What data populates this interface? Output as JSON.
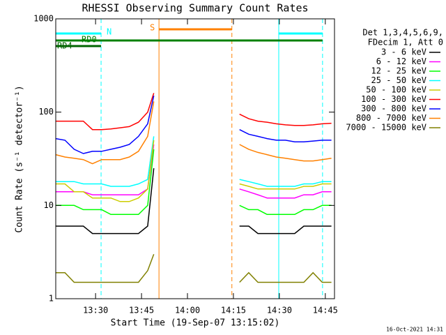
{
  "chart_data": {
    "type": "line",
    "title": "RHESSI Observing Summary Count Rates",
    "xlabel": "Start Time (19-Sep-07 13:15:02)",
    "ylabel": "Count Rate (s⁻¹ detector⁻¹)",
    "log_y": true,
    "xlim": [
      17,
      108
    ],
    "ylim": [
      1,
      1000
    ],
    "xticks": [
      {
        "value": 30,
        "label": "13:30"
      },
      {
        "value": 45,
        "label": "13:45"
      },
      {
        "value": 60,
        "label": "14:00"
      },
      {
        "value": 75,
        "label": "14:15"
      },
      {
        "value": 90,
        "label": "14:30"
      },
      {
        "value": 105,
        "label": "14:45"
      }
    ],
    "yticks": [
      1,
      10,
      100,
      1000
    ],
    "legend_header": [
      "Det 1,3,4,5,6,9,",
      "FDecim 1, Att 0"
    ],
    "timestamp": "16-Oct-2021 14:31",
    "x": [
      17,
      20,
      23,
      26,
      29,
      32,
      35,
      38,
      41,
      44,
      47,
      49,
      62,
      77,
      80,
      83,
      86,
      89,
      92,
      95,
      98,
      101,
      104,
      107
    ],
    "series": [
      {
        "name": "3 - 6 keV",
        "color": "#000000",
        "values": [
          6,
          6,
          6,
          6,
          5,
          5,
          5,
          5,
          5,
          5,
          6,
          25,
          null,
          6,
          6,
          5,
          5,
          5,
          5,
          5,
          6,
          6,
          6,
          6
        ]
      },
      {
        "name": "6 - 12 keV",
        "color": "#ff00ff",
        "values": [
          14,
          14,
          14,
          14,
          13,
          13,
          13,
          13,
          13,
          13,
          15,
          45,
          null,
          15,
          14,
          13,
          12,
          12,
          12,
          12,
          13,
          13,
          14,
          14
        ]
      },
      {
        "name": "12 - 25 keV",
        "color": "#00ff00",
        "values": [
          10,
          10,
          10,
          9,
          9,
          9,
          8,
          8,
          8,
          8,
          10,
          40,
          null,
          10,
          9,
          9,
          8,
          8,
          8,
          8,
          9,
          9,
          10,
          10
        ]
      },
      {
        "name": "25 - 50 keV",
        "color": "#00ffff",
        "values": [
          18,
          18,
          18,
          17,
          17,
          17,
          16,
          16,
          16,
          17,
          19,
          55,
          null,
          19,
          18,
          17,
          16,
          16,
          16,
          16,
          17,
          17,
          18,
          18
        ]
      },
      {
        "name": "50 - 100 keV",
        "color": "#cccc00",
        "values": [
          17,
          17,
          14,
          14,
          12,
          12,
          12,
          11,
          11,
          12,
          15,
          50,
          null,
          17,
          16,
          15,
          15,
          15,
          15,
          15,
          16,
          16,
          17,
          17
        ]
      },
      {
        "name": "100 - 300 keV",
        "color": "#ff0000",
        "values": [
          80,
          80,
          80,
          80,
          65,
          65,
          66,
          68,
          70,
          78,
          100,
          160,
          null,
          95,
          85,
          80,
          78,
          75,
          73,
          72,
          72,
          73,
          75,
          76
        ]
      },
      {
        "name": "300 - 800 keV",
        "color": "#0000ff",
        "values": [
          52,
          50,
          40,
          36,
          38,
          38,
          40,
          42,
          45,
          55,
          75,
          150,
          null,
          65,
          58,
          55,
          52,
          50,
          50,
          48,
          48,
          49,
          50,
          50
        ]
      },
      {
        "name": "800 - 7000 keV",
        "color": "#ff8000",
        "values": [
          35,
          33,
          32,
          31,
          28,
          31,
          31,
          31,
          33,
          38,
          55,
          130,
          null,
          45,
          40,
          37,
          35,
          33,
          32,
          31,
          30,
          30,
          31,
          32
        ]
      },
      {
        "name": "7000 - 15000 keV",
        "color": "#808000",
        "values": [
          1.9,
          1.9,
          1.5,
          1.5,
          1.5,
          1.5,
          1.5,
          1.5,
          1.5,
          1.5,
          2,
          3,
          null,
          1.5,
          1.9,
          1.5,
          1.5,
          1.5,
          1.5,
          1.5,
          1.5,
          1.9,
          1.5,
          1.5
        ]
      }
    ],
    "bands": [
      {
        "label": "N",
        "start": 17,
        "end": 31.8,
        "color": "#00ffff",
        "edges": true
      },
      {
        "start": 89.8,
        "end": 104.1,
        "color": "#00ffff",
        "edges": true
      },
      {
        "label": "S",
        "start": 50.7,
        "end": 74.5,
        "color": "#ff8000",
        "edges": true
      },
      {
        "label": "RD0",
        "start": 17,
        "end": 104.1,
        "color": "#008000",
        "edges": false
      },
      {
        "label": "RD4",
        "start": 17,
        "end": 31.8,
        "color": "#006400",
        "edges": false
      }
    ]
  }
}
